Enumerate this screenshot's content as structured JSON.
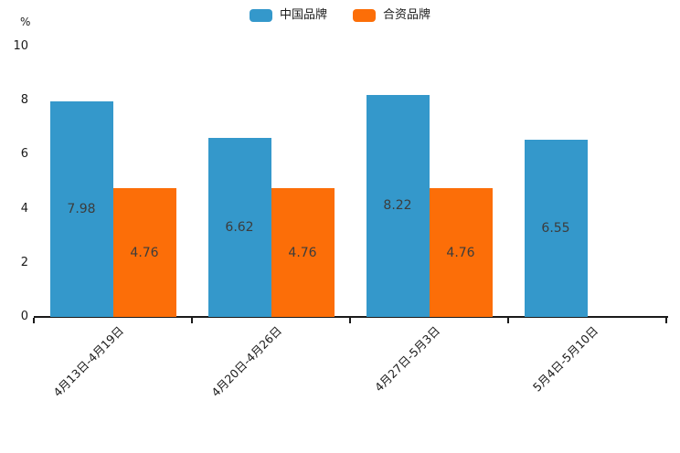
{
  "chart_data": {
    "type": "bar",
    "title": "",
    "categories": [
      "4月13日-4月19日",
      "4月20日-4月26日",
      "4月27日-5月3日",
      "5月4日-5月10日"
    ],
    "series": [
      {
        "name": "中国品牌",
        "color": "#3498cb",
        "values": [
          7.98,
          6.62,
          8.22,
          6.55
        ]
      },
      {
        "name": "合资品牌",
        "color": "#fc6e08",
        "values": [
          4.76,
          4.76,
          4.76,
          null
        ]
      }
    ],
    "value_labels": [
      "7.98",
      "6.62",
      "8.22",
      "6.55",
      "4.76",
      "4.76",
      "4.76"
    ],
    "xlabel": "",
    "ylabel": "%",
    "ylim": [
      0,
      10
    ],
    "yticks": [
      "0",
      "2",
      "4",
      "6",
      "8",
      "10"
    ],
    "grid": false,
    "legend_position": "top-center",
    "axis_color": "#1a1a1a",
    "value_label_color": "#3c3c3c"
  }
}
